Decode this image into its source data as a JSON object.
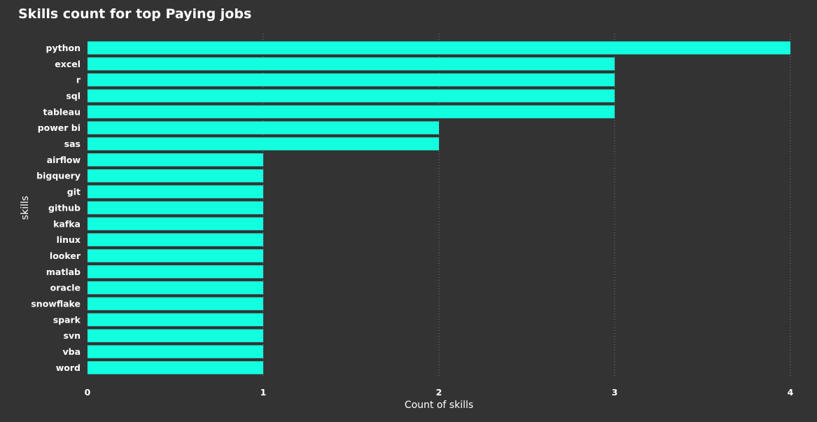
{
  "chart_data": {
    "type": "bar",
    "orientation": "horizontal",
    "title": "Skills count for top Paying jobs",
    "xlabel": "Count of skills",
    "ylabel": "skills",
    "categories": [
      "python",
      "excel",
      "r",
      "sql",
      "tableau",
      "power bi",
      "sas",
      "airflow",
      "bigquery",
      "git",
      "github",
      "kafka",
      "linux",
      "looker",
      "matlab",
      "oracle",
      "snowflake",
      "spark",
      "svn",
      "vba",
      "word"
    ],
    "values": [
      4,
      3,
      3,
      3,
      3,
      2,
      2,
      1,
      1,
      1,
      1,
      1,
      1,
      1,
      1,
      1,
      1,
      1,
      1,
      1,
      1
    ],
    "xlim": [
      0,
      4
    ],
    "xticks": [
      0,
      1,
      2,
      3,
      4
    ],
    "grid": true,
    "legend": "none"
  },
  "colors": {
    "background": "#333333",
    "bar": "#12FFE0",
    "text": "#ffffff",
    "grid": "#7a7a7a"
  }
}
